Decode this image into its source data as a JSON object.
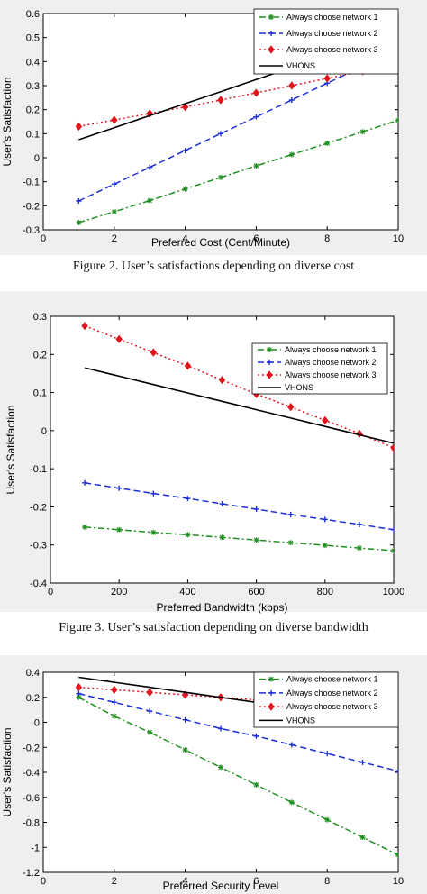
{
  "captions": [
    "Figure 2.   User’s satisfactions depending on diverse cost",
    "Figure 3.   User’s satisfaction depending on diverse bandwidth"
  ],
  "colors": {
    "network1": "#1f8f1f",
    "network2": "#1c2fd6",
    "network3": "#e0151c",
    "vhons": "#000000",
    "panel": "#efefef"
  },
  "chart_data": [
    {
      "type": "line",
      "xlabel": "Preferred Cost (Cent/Minute)",
      "ylabel": "User's Satisfaction",
      "xlim": [
        0,
        10
      ],
      "ylim": [
        -0.3,
        0.6
      ],
      "xticks": [
        0,
        2,
        4,
        6,
        8,
        10
      ],
      "yticks": [
        -0.3,
        -0.2,
        -0.1,
        0,
        0.1,
        0.2,
        0.3,
        0.4,
        0.5,
        0.6
      ],
      "ytick_labels": [
        "-0.3",
        "-0.2",
        "-0.1",
        "0",
        "0.1",
        "0.2",
        "0.3",
        "0.4",
        "0.5",
        "0.6"
      ],
      "legend_position": "top-right",
      "grid": false,
      "x": [
        1,
        2,
        3,
        4,
        5,
        6,
        7,
        8,
        9,
        10
      ],
      "series": [
        {
          "name": "Always choose network 1",
          "style": "dash-dot",
          "marker": "star",
          "color": "#1f8f1f",
          "values": [
            -0.27,
            -0.225,
            -0.178,
            -0.13,
            -0.082,
            -0.034,
            0.013,
            0.06,
            0.108,
            0.156
          ]
        },
        {
          "name": "Always choose network 2",
          "style": "dashed",
          "marker": "plus",
          "color": "#1c2fd6",
          "values": [
            -0.18,
            -0.11,
            -0.04,
            0.03,
            0.1,
            0.17,
            0.24,
            0.31,
            0.38,
            0.45
          ]
        },
        {
          "name": "Always choose network 3",
          "style": "dotted",
          "marker": "diamond",
          "color": "#e0151c",
          "values": [
            0.13,
            0.157,
            0.184,
            0.211,
            0.24,
            0.27,
            0.3,
            0.33,
            0.36,
            0.39
          ]
        },
        {
          "name": "VHONS",
          "style": "solid",
          "marker": "none",
          "color": "#000000",
          "values": [
            0.075,
            0.125,
            0.175,
            0.225,
            0.275,
            0.325,
            0.375,
            0.425,
            0.475,
            0.525
          ]
        }
      ]
    },
    {
      "type": "line",
      "xlabel": "Preferred Bandwidth (kbps)",
      "ylabel": "User's Satisfaction",
      "xlim": [
        0,
        1000
      ],
      "ylim": [
        -0.4,
        0.3
      ],
      "xticks": [
        0,
        200,
        400,
        600,
        800,
        1000
      ],
      "yticks": [
        -0.4,
        -0.3,
        -0.2,
        -0.1,
        0,
        0.1,
        0.2,
        0.3
      ],
      "ytick_labels": [
        "-0.4",
        "-0.3",
        "-0.2",
        "-0.1",
        "0",
        "0.1",
        "0.2",
        "0.3"
      ],
      "legend_position": "top-right",
      "grid": false,
      "x": [
        100,
        200,
        300,
        400,
        500,
        600,
        700,
        800,
        900,
        1000
      ],
      "series": [
        {
          "name": "Always choose network 1",
          "style": "dash-dot",
          "marker": "star",
          "color": "#1f8f1f",
          "values": [
            -0.253,
            -0.26,
            -0.267,
            -0.273,
            -0.28,
            -0.287,
            -0.294,
            -0.301,
            -0.308,
            -0.315
          ]
        },
        {
          "name": "Always choose network 2",
          "style": "dashed",
          "marker": "plus",
          "color": "#1c2fd6",
          "values": [
            -0.137,
            -0.151,
            -0.165,
            -0.178,
            -0.192,
            -0.206,
            -0.22,
            -0.233,
            -0.246,
            -0.26
          ]
        },
        {
          "name": "Always choose network 3",
          "style": "dotted",
          "marker": "diamond",
          "color": "#e0151c",
          "values": [
            0.275,
            0.24,
            0.205,
            0.17,
            0.133,
            0.096,
            0.062,
            0.027,
            -0.008,
            -0.045
          ]
        },
        {
          "name": "VHONS",
          "style": "solid",
          "marker": "none",
          "color": "#000000",
          "values": [
            0.165,
            0.143,
            0.121,
            0.099,
            0.077,
            0.055,
            0.033,
            0.011,
            -0.011,
            -0.033
          ]
        }
      ]
    },
    {
      "type": "line",
      "xlabel": "Preferred Security Level",
      "ylabel": "User's Satisfaction",
      "xlim": [
        0,
        10
      ],
      "ylim": [
        -1.2,
        0.4
      ],
      "xticks": [
        0,
        2,
        4,
        6,
        8,
        10
      ],
      "yticks": [
        -1.2,
        -1.0,
        -0.8,
        -0.6,
        -0.4,
        -0.2,
        0,
        0.2,
        0.4
      ],
      "ytick_labels": [
        "-1.2",
        "-1",
        "-0.8",
        "-0.6",
        "-0.4",
        "-0.2",
        "0",
        "0.2",
        "0.4"
      ],
      "legend_position": "top-right",
      "grid": false,
      "x": [
        1,
        2,
        3,
        4,
        5,
        6,
        7,
        8,
        9,
        10
      ],
      "series": [
        {
          "name": "Always choose network 1",
          "style": "dash-dot",
          "marker": "star",
          "color": "#1f8f1f",
          "values": [
            0.2,
            0.05,
            -0.08,
            -0.22,
            -0.36,
            -0.5,
            -0.64,
            -0.78,
            -0.92,
            -1.06
          ]
        },
        {
          "name": "Always choose network 2",
          "style": "dashed",
          "marker": "plus",
          "color": "#1c2fd6",
          "values": [
            0.23,
            0.16,
            0.09,
            0.02,
            -0.05,
            -0.11,
            -0.18,
            -0.25,
            -0.32,
            -0.39
          ]
        },
        {
          "name": "Always choose network 3",
          "style": "dotted",
          "marker": "diamond",
          "color": "#e0151c",
          "values": [
            0.28,
            0.26,
            0.24,
            0.22,
            0.2,
            0.18,
            0.16,
            0.14,
            0.12,
            0.1
          ]
        },
        {
          "name": "VHONS",
          "style": "solid",
          "marker": "none",
          "color": "#000000",
          "values": [
            0.36,
            0.32,
            0.28,
            0.24,
            0.2,
            0.16,
            0.12,
            0.08,
            0.04,
            0.0
          ]
        }
      ]
    }
  ]
}
